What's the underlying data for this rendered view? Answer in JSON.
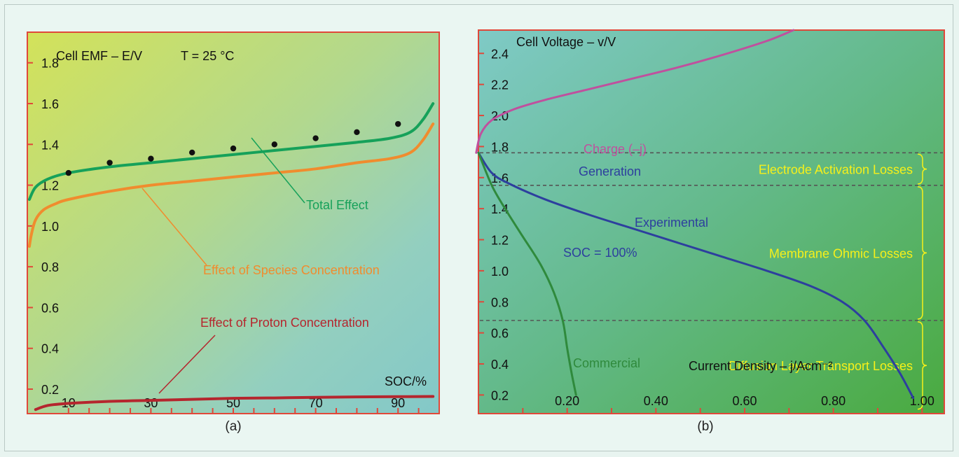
{
  "chart_data": [
    {
      "panel": "a",
      "type": "line",
      "caption": "(a)",
      "ylabel": "Cell EMF – E/V",
      "condition": "T = 25 °C",
      "xlabel": "SOC/%",
      "xlim": [
        0,
        100
      ],
      "ylim": [
        0.08,
        1.95
      ],
      "x_ticks": [
        10,
        30,
        50,
        70,
        90
      ],
      "y_ticks": [
        0.2,
        0.4,
        0.6,
        0.8,
        1.0,
        1.2,
        1.4,
        1.6,
        1.8
      ],
      "series": [
        {
          "name": "Total Effect",
          "color": "#16a15a",
          "x": [
            0.5,
            2,
            5,
            10,
            20,
            30,
            40,
            50,
            60,
            70,
            80,
            88,
            93,
            96,
            98.5
          ],
          "y": [
            1.13,
            1.19,
            1.23,
            1.26,
            1.29,
            1.31,
            1.33,
            1.35,
            1.37,
            1.39,
            1.41,
            1.43,
            1.46,
            1.52,
            1.6
          ]
        },
        {
          "name": "Effect of Species Concentration",
          "color": "#f08c2e",
          "x": [
            0.5,
            1,
            2,
            4,
            7,
            10,
            20,
            30,
            40,
            50,
            60,
            70,
            80,
            88,
            93,
            96,
            98.5
          ],
          "y": [
            0.9,
            0.96,
            1.03,
            1.08,
            1.11,
            1.13,
            1.17,
            1.2,
            1.22,
            1.24,
            1.26,
            1.28,
            1.31,
            1.33,
            1.36,
            1.42,
            1.5
          ]
        },
        {
          "name": "Effect of Proton Concentration",
          "color": "#b5262e",
          "x": [
            2,
            5,
            10,
            20,
            30,
            40,
            50,
            60,
            70,
            80,
            90,
            98.5
          ],
          "y": [
            0.1,
            0.12,
            0.13,
            0.14,
            0.145,
            0.15,
            0.155,
            0.157,
            0.16,
            0.162,
            0.163,
            0.164
          ]
        },
        {
          "name": "",
          "type": "scatter",
          "color": "#111111",
          "x": [
            10,
            20,
            30,
            40,
            50,
            60,
            70,
            80,
            90
          ],
          "y": [
            1.26,
            1.31,
            1.33,
            1.36,
            1.38,
            1.4,
            1.43,
            1.46,
            1.5
          ]
        }
      ]
    },
    {
      "panel": "b",
      "type": "line",
      "caption": "(b)",
      "ylabel": "Cell Voltage – v/V",
      "xlabel": "Current Density – j/Acm⁻²",
      "xlim": [
        0,
        1.05
      ],
      "ylim": [
        0.08,
        2.55
      ],
      "x_ticks": [
        0.2,
        0.4,
        0.6,
        0.8,
        1.0
      ],
      "x_tick_labels": [
        "0.20",
        "0.40",
        "0.60",
        "0.80",
        "1.00"
      ],
      "y_ticks": [
        0.2,
        0.4,
        0.6,
        0.8,
        1.0,
        1.2,
        1.4,
        1.6,
        1.8,
        2.0,
        2.2,
        2.4
      ],
      "series_labels": {
        "charge": "Charge (–j)",
        "generation": "Generation",
        "experimental": "Experimental",
        "soc": "SOC = 100%",
        "commercial": "Commercial"
      },
      "series": [
        {
          "name": "Charge (–j)",
          "color": "#c0509e",
          "x": [
            -0.005,
            0.005,
            0.03,
            0.08,
            0.15,
            0.25,
            0.35,
            0.45,
            0.55,
            0.65,
            0.71
          ],
          "y": [
            1.76,
            1.88,
            1.97,
            2.04,
            2.1,
            2.17,
            2.24,
            2.31,
            2.39,
            2.48,
            2.55
          ]
        },
        {
          "name": "Experimental",
          "color": "#2d3f9e",
          "x": [
            0.0,
            0.03,
            0.07,
            0.15,
            0.25,
            0.35,
            0.45,
            0.55,
            0.65,
            0.75,
            0.82,
            0.87,
            0.91,
            0.95,
            0.98
          ],
          "y": [
            1.76,
            1.63,
            1.56,
            1.46,
            1.36,
            1.27,
            1.18,
            1.09,
            1.0,
            0.9,
            0.8,
            0.68,
            0.52,
            0.34,
            0.18
          ]
        },
        {
          "name": "Commercial",
          "color": "#2f8a3c",
          "x": [
            0.0,
            0.03,
            0.06,
            0.1,
            0.14,
            0.17,
            0.19,
            0.2,
            0.21,
            0.22
          ],
          "y": [
            1.76,
            1.55,
            1.4,
            1.22,
            1.04,
            0.86,
            0.68,
            0.5,
            0.34,
            0.2
          ]
        }
      ],
      "loss_regions": [
        {
          "label": "Electrode Activation Losses",
          "from": 1.55,
          "to": 1.76
        },
        {
          "label": "Membrane Ohmic Losses",
          "from": 0.68,
          "to": 1.55
        },
        {
          "label": "Diffusion Layer Transport Losses",
          "from": 0.1,
          "to": 0.68
        }
      ]
    }
  ],
  "colors": {
    "frame": "#e0483a",
    "region_label": "#f6f01a",
    "dashed": "#555555"
  }
}
